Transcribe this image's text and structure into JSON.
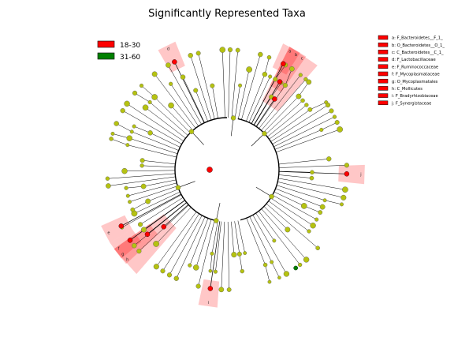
{
  "chart_data": {
    "type": "cladogram",
    "title": "Significantly Represented Taxa",
    "groups": [
      {
        "name": "18-30",
        "color": "#ff0000"
      },
      {
        "name": "31-60",
        "color": "#008000"
      }
    ],
    "node_color": "#b5c211",
    "highlight_color": "#ff0000",
    "clades": [
      {
        "letter": "a",
        "name": "F_Bacteroidetes__F_1_",
        "group": "18-30"
      },
      {
        "letter": "b",
        "name": "O_Bacteroidetes__O_1_",
        "group": "18-30"
      },
      {
        "letter": "c",
        "name": "C_Bacteroidetes__C_1_",
        "group": "18-30"
      },
      {
        "letter": "d",
        "name": "F_Lactobacillaceae",
        "group": "18-30"
      },
      {
        "letter": "e",
        "name": "F_Ruminococcaceae",
        "group": "18-30"
      },
      {
        "letter": "f",
        "name": "F_Mycoplasmataceae",
        "group": "18-30"
      },
      {
        "letter": "g",
        "name": "O_Mycoplasmatales",
        "group": "18-30"
      },
      {
        "letter": "h",
        "name": "C_Mollicutes",
        "group": "18-30"
      },
      {
        "letter": "i",
        "name": "F_Bradyrhizobiaceae",
        "group": "18-30"
      },
      {
        "letter": "j",
        "name": "F_Synergistaceae",
        "group": "18-30"
      }
    ]
  }
}
